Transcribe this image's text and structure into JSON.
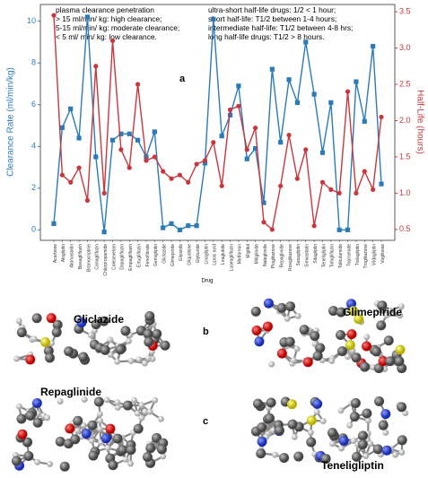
{
  "chart_data": {
    "type": "line",
    "categories": [
      "Acarbose",
      "Alogliptin",
      "Atorvastatin",
      "Bexagliflozin",
      "Bromocriptine",
      "Canagliflozin",
      "Chlorpropamide",
      "Colesevelam",
      "Dapagliflozin",
      "Empagliflozin",
      "Ertugliflozin",
      "Fenofibrate",
      "Gemigliptin",
      "Gliclazide",
      "Glimepiride",
      "Glipizide",
      "Gliquidone",
      "Glyburide",
      "Linagliptin",
      "Lipoic acid",
      "Liraglutide",
      "Luseogliflozin",
      "Metformin",
      "Miglitol",
      "Mitiglinide",
      "Nateglinide",
      "Pioglitazone",
      "Repaglinide",
      "Rosiglitazone",
      "Saxagliptin",
      "Simvastatin",
      "Sitagliptin",
      "Teneligliptin",
      "Tofogliflozin",
      "Tolbutamide",
      "Topiramate",
      "Trelagliptin",
      "Troglitazone",
      "Vildagliptin",
      "Voglibose"
    ],
    "series": [
      {
        "name": "Clearance Rate",
        "color": "#2b7bb9",
        "axis": "y",
        "values": [
          0.3,
          4.9,
          5.8,
          4.4,
          10.2,
          3.5,
          -0.1,
          4.3,
          4.6,
          4.6,
          4.3,
          3.5,
          4.7,
          0.1,
          0.3,
          0.0,
          0.2,
          0.2,
          3.2,
          10.1,
          4.5,
          5.5,
          6.9,
          3.4,
          3.9,
          1.3,
          7.7,
          4.2,
          7.2,
          6.1,
          9.0,
          6.5,
          3.7,
          6.1,
          0.0,
          0.0,
          7.1,
          5.2,
          8.8,
          2.2
        ]
      },
      {
        "name": "Half-Life",
        "color": "#c8373d",
        "axis": "y2",
        "values": [
          3.45,
          1.25,
          1.15,
          1.35,
          0.9,
          2.75,
          1.0,
          3.1,
          1.6,
          1.35,
          2.5,
          1.45,
          1.5,
          1.3,
          1.2,
          1.25,
          1.15,
          1.4,
          1.45,
          1.7,
          1.1,
          2.15,
          2.2,
          1.6,
          1.9,
          0.6,
          0.5,
          1.1,
          1.8,
          1.2,
          1.6,
          0.55,
          1.15,
          1.05,
          1.0,
          2.4,
          1.0,
          1.3,
          1.05,
          2.05
        ]
      }
    ],
    "ylabel": "Clearance Rate (ml/min/kg)",
    "y2label": "Half-Life (hours)",
    "xlabel": "Drug",
    "ylim": [
      -0.5,
      10.8
    ],
    "yticks": [
      0,
      2,
      4,
      6,
      8,
      10
    ],
    "y2lim": [
      0.35,
      3.6
    ],
    "y2ticks": [
      0.5,
      {
        "value": 1,
        "label": "1.0"
      },
      1.5,
      {
        "value": 2,
        "label": "2.0"
      },
      2.5,
      {
        "value": 3,
        "label": "3.0"
      },
      3.5
    ],
    "annotations_left": [
      "plasma clearance penetration",
      "> 15 ml/min/ kg: high clearance;",
      "5-15 ml/min/ kg: moderate clearance;",
      "< 5 ml/ min/ kg: low clearance."
    ],
    "annotations_right": [
      "ultra-short half-life drugs: 1/2 < 1 hour;",
      "short half-life: T1/2 between 1-4 hours;",
      "intermediate half-life: T1/2 between 4-8 hrs;",
      "long half-life drugs: T1/2 > 8 hours."
    ],
    "panel": "a"
  },
  "panels": [
    "b",
    "c"
  ],
  "molecules": [
    "Gliclazide",
    "Glimepiride",
    "Repaglinide",
    "Teneligliptin"
  ]
}
